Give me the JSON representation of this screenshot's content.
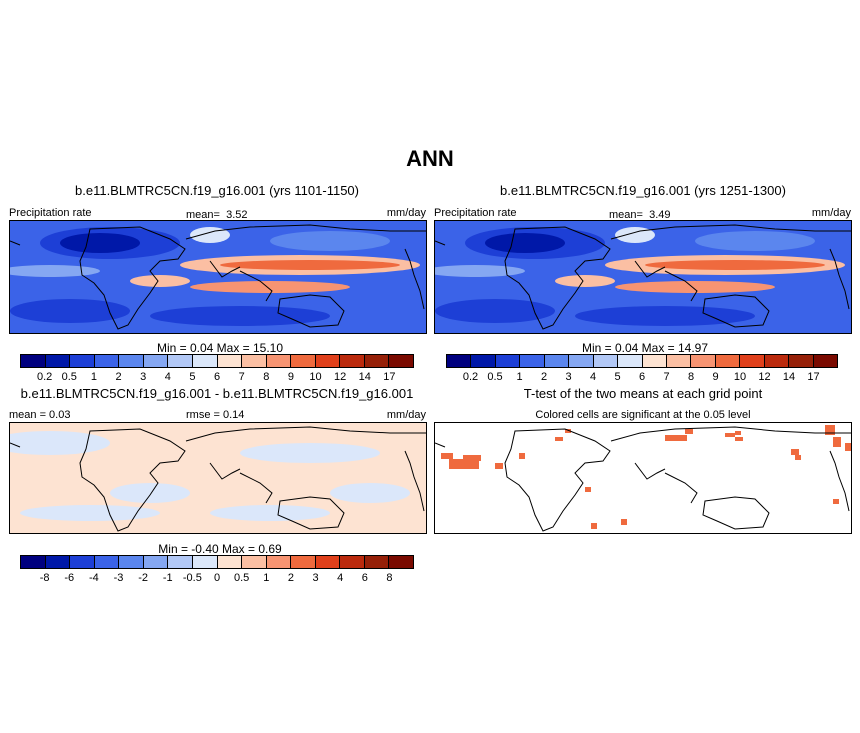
{
  "title": "ANN",
  "panels": [
    {
      "title": "b.e11.BLMTRC5CN.f19_g16.001 (yrs 1101-1150)",
      "left_label": "Precipitation rate",
      "mean_label": "mean=",
      "mean_value": "3.52",
      "units": "mm/day",
      "minmax": "Min =   0.04 Max =  15.10"
    },
    {
      "title": "b.e11.BLMTRC5CN.f19_g16.001 (yrs 1251-1300)",
      "left_label": "Precipitation rate",
      "mean_label": "mean=",
      "mean_value": "3.49",
      "units": "mm/day",
      "minmax": "Min =   0.04 Max =  14.97"
    },
    {
      "title": "b.e11.BLMTRC5CN.f19_g16.001 - b.e11.BLMTRC5CN.f19_g16.001",
      "left_label": "mean =  0.03",
      "rmse_label": "rmse =  0.14",
      "units": "mm/day",
      "minmax": "Min =  -0.40 Max =   0.69"
    },
    {
      "title": "T-test of the two means at each grid point",
      "subtitle": "Colored cells are significant at the 0.05 level"
    }
  ],
  "colorbar_precip": {
    "labels": [
      "0.2",
      "0.5",
      "1",
      "2",
      "3",
      "4",
      "5",
      "6",
      "7",
      "8",
      "9",
      "10",
      "12",
      "14",
      "17"
    ],
    "colors": [
      "#00007f",
      "#0018a8",
      "#1d3fd6",
      "#3b63e8",
      "#5b86ee",
      "#85a7f2",
      "#b2c8f6",
      "#dbe7fa",
      "#fde3d2",
      "#fbbfa3",
      "#f79472",
      "#ef6a3e",
      "#e0401b",
      "#bb2a0d",
      "#962008",
      "#7a0a00"
    ]
  },
  "colorbar_diff": {
    "labels": [
      "-8",
      "-6",
      "-4",
      "-3",
      "-2",
      "-1",
      "-0.5",
      "0",
      "0.5",
      "1",
      "2",
      "3",
      "4",
      "6",
      "8"
    ],
    "colors": [
      "#00007f",
      "#0018a8",
      "#1d3fd6",
      "#3b63e8",
      "#5b86ee",
      "#85a7f2",
      "#b2c8f6",
      "#dbe7fa",
      "#fde3d2",
      "#fbbfa3",
      "#f79472",
      "#ef6a3e",
      "#e0401b",
      "#bb2a0d",
      "#962008",
      "#7a0a00"
    ]
  }
}
